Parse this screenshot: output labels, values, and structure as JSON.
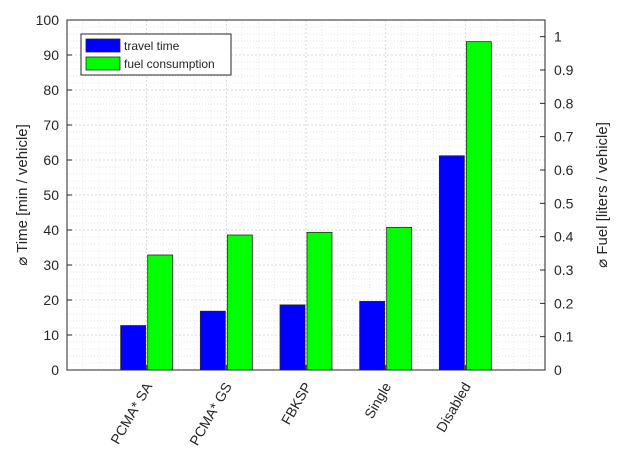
{
  "chart_data": {
    "type": "bar",
    "categories": [
      "PCMA* SA",
      "PCMA* GS",
      "FBKSP",
      "Single",
      "Disabled"
    ],
    "series": [
      {
        "name": "travel time",
        "axis": "left",
        "color": "#0000ff",
        "values": [
          12.7,
          16.8,
          18.6,
          19.6,
          61.2
        ]
      },
      {
        "name": "fuel consumption",
        "axis": "right",
        "color": "#00ff00",
        "values": [
          0.345,
          0.405,
          0.413,
          0.428,
          0.985
        ]
      }
    ],
    "ylabel": "⌀ Time [min / vehicle]",
    "y2label": "⌀ Fuel [liters / vehicle]",
    "ylim": [
      0,
      100
    ],
    "y2lim": [
      0,
      1.05
    ],
    "yticks": [
      "0",
      "10",
      "20",
      "30",
      "40",
      "50",
      "60",
      "70",
      "80",
      "90",
      "100"
    ],
    "y2ticks": [
      "0",
      "0.1",
      "0.2",
      "0.3",
      "0.4",
      "0.5",
      "0.6",
      "0.7",
      "0.8",
      "0.9",
      "1"
    ],
    "grid": true,
    "minor_grid": true,
    "legend_position": "top-left"
  }
}
